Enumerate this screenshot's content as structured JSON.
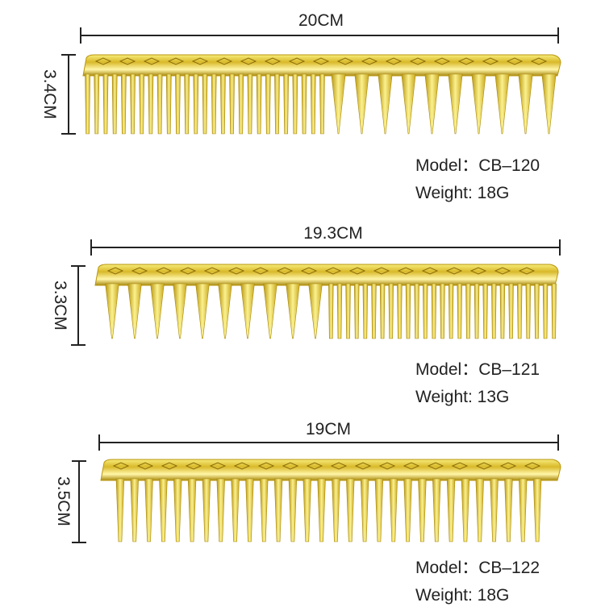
{
  "products": [
    {
      "length": "20CM",
      "height": "3.4CM",
      "model": "Model：CB–120",
      "weight": "Weight: 18G"
    },
    {
      "length": "19.3CM",
      "height": "3.3CM",
      "model": "Model：CB–121",
      "weight": "Weight: 13G"
    },
    {
      "length": "19CM",
      "height": "3.5CM",
      "model": "Model：CB–122",
      "weight": "Weight: 18G"
    }
  ]
}
